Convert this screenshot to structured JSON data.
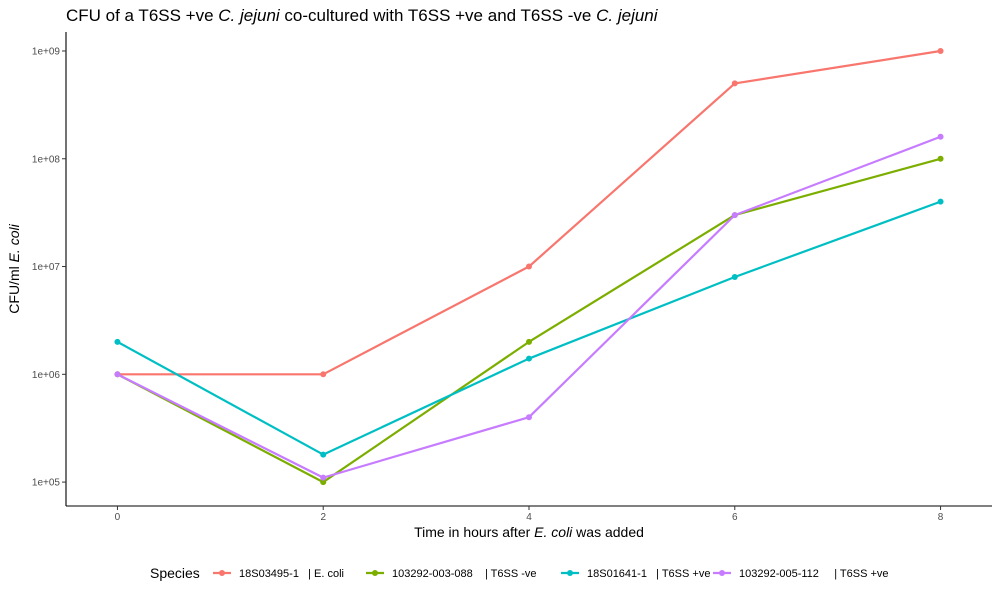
{
  "chart_data": {
    "type": "line",
    "title": {
      "parts": [
        {
          "text": "CFU of a T6SS +ve ",
          "italic": false
        },
        {
          "text": "C. jejuni",
          "italic": true
        },
        {
          "text": " co-cultured  with T6SS +ve and T6SS -ve  ",
          "italic": false
        },
        {
          "text": "C. jejuni",
          "italic": true
        }
      ]
    },
    "xlabel": {
      "parts": [
        {
          "text": "Time in hours after ",
          "italic": false
        },
        {
          "text": "E. coli",
          "italic": true
        },
        {
          "text": " was added",
          "italic": false
        }
      ]
    },
    "ylabel": {
      "parts": [
        {
          "text": "CFU/ml ",
          "italic": false
        },
        {
          "text": "E. coli",
          "italic": true
        }
      ]
    },
    "y_scale": "log10",
    "xlim": [
      -0.5,
      8.5
    ],
    "ylim": [
      60000,
      1500000000
    ],
    "x_ticks": [
      0,
      2,
      4,
      6,
      8
    ],
    "x_tick_labels": [
      "0",
      "2",
      "4",
      "6",
      "8"
    ],
    "y_ticks": [
      100000,
      1000000,
      10000000,
      100000000,
      1000000000
    ],
    "y_tick_labels": [
      "1e+05",
      "1e+06",
      "1e+07",
      "1e+08",
      "1e+09"
    ],
    "grid": false,
    "legend": {
      "title": "Species",
      "placement": "bottom"
    },
    "x": [
      0,
      2,
      4,
      6,
      8
    ],
    "series": [
      {
        "name": "18S03495-1   | E. coli",
        "color": "#F8766D",
        "values": [
          1000000,
          1000000,
          10000000,
          500000000,
          1000000000
        ]
      },
      {
        "name": "103292-003-088    | T6SS -ve",
        "color": "#7CAE00",
        "values": [
          1000000,
          100000,
          2000000,
          30000000,
          100000000
        ]
      },
      {
        "name": "18S01641-1   | T6SS +ve",
        "color": "#00BFC4",
        "values": [
          2000000,
          180000,
          1400000,
          8000000,
          40000000
        ]
      },
      {
        "name": "103292-005-112     | T6SS +ve",
        "color": "#C77CFF",
        "values": [
          1000000,
          110000,
          400000,
          30000000,
          160000000
        ]
      }
    ]
  }
}
